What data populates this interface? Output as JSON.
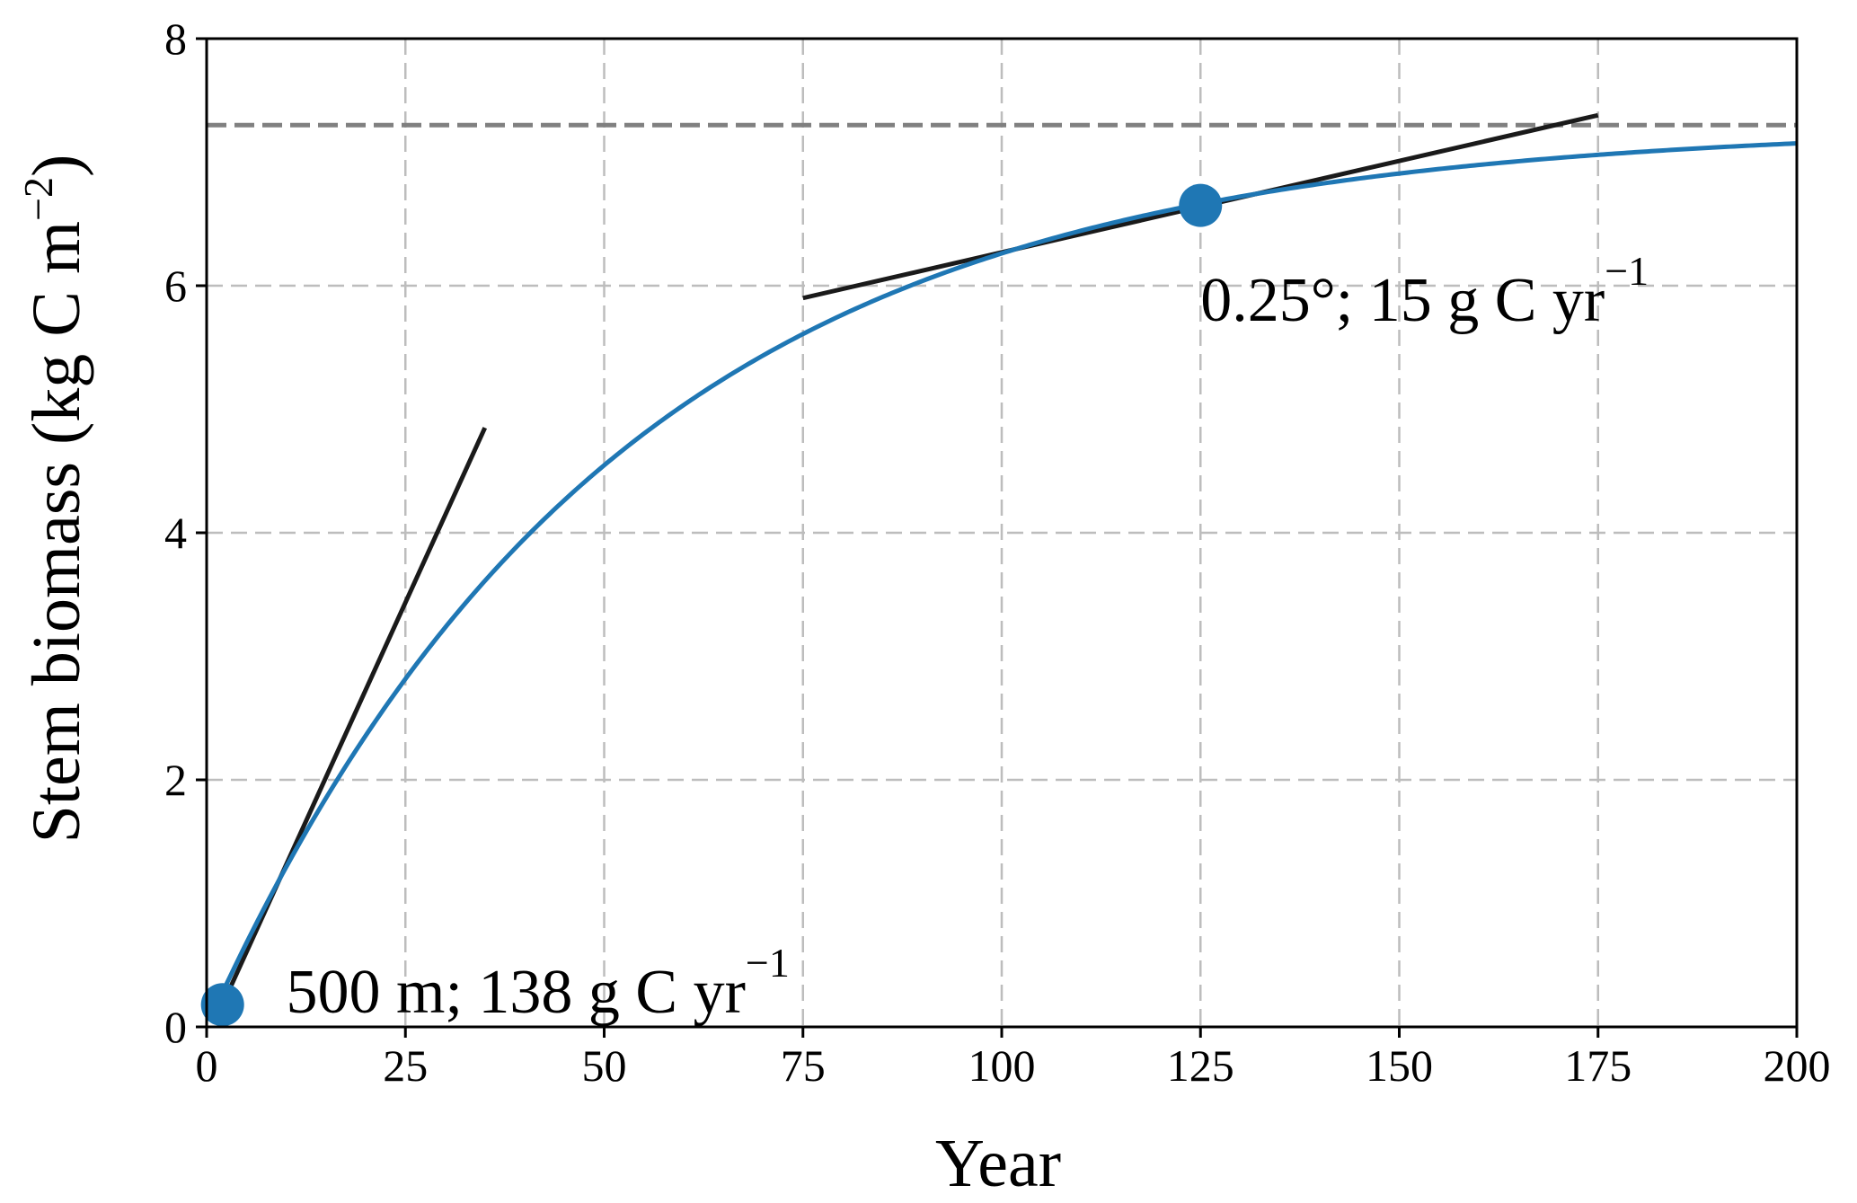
{
  "chart_data": {
    "type": "line",
    "xlabel": "Year",
    "ylabel": {
      "text": "Stem biomass (kg C m",
      "sup": "−2",
      "close": ")"
    },
    "xlim": [
      0,
      200
    ],
    "ylim": [
      0,
      8
    ],
    "xticks": [
      0,
      25,
      50,
      75,
      100,
      125,
      150,
      175,
      200
    ],
    "yticks": [
      0,
      2,
      4,
      6,
      8
    ],
    "grid": true,
    "curve": {
      "equation": "y = 7.3 * (1 - exp(-0.0195 * x))",
      "asymptote": 7.3,
      "rate": 0.0195,
      "x_range": [
        2,
        200
      ],
      "color": "#1f77b4"
    },
    "asymptote_line": {
      "y": 7.3,
      "style": "dashed",
      "color": "#808080"
    },
    "tangents": [
      {
        "x": [
          2,
          35
        ],
        "y": [
          0.18,
          4.85
        ],
        "color": "#1a1a1a"
      },
      {
        "x": [
          75,
          175
        ],
        "y": [
          5.9,
          7.38
        ],
        "color": "#1a1a1a"
      }
    ],
    "points": [
      {
        "x": 2,
        "y": 0.18,
        "color": "#1f77b4"
      },
      {
        "x": 125,
        "y": 6.65,
        "color": "#1f77b4"
      }
    ],
    "annotations": [
      {
        "text": "500 m; 138 g C yr",
        "sup": "−1",
        "x": 10,
        "y": 0.3
      },
      {
        "text": "0.25°; 15 g C yr",
        "sup": "−1",
        "x": 125,
        "y": 5.9
      }
    ]
  }
}
